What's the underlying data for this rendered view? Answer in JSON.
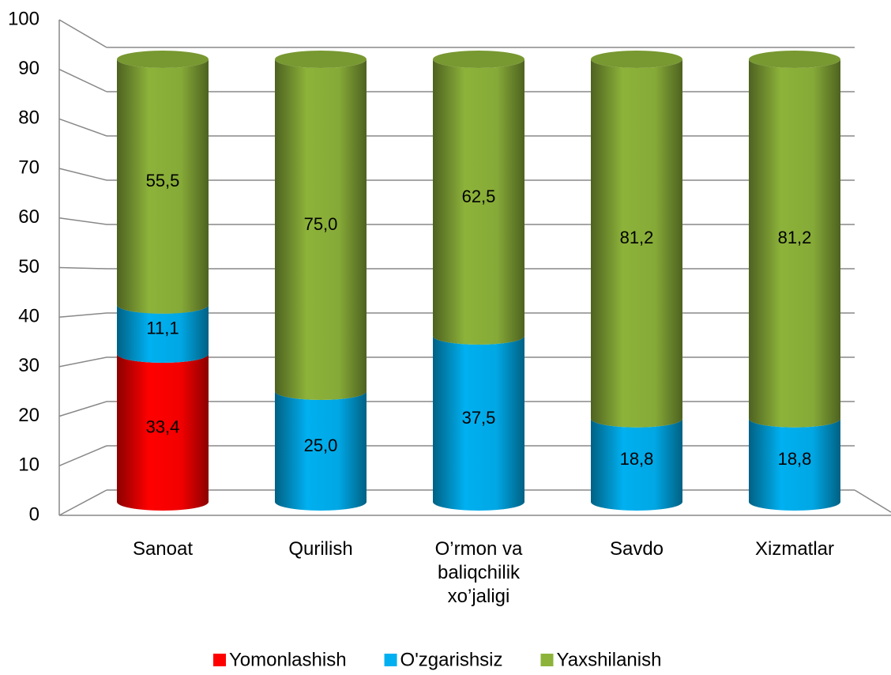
{
  "chart_data": {
    "type": "stacked-cylinder",
    "categories": [
      "Sanoat",
      "Qurilish",
      "O’rmon va baliqchilik xo’jaligi",
      "Savdo",
      "Xizmatlar"
    ],
    "series": [
      {
        "name": "Yomonlashish",
        "color": "#ff0000",
        "values": [
          33.4,
          null,
          null,
          null,
          null
        ],
        "value_labels": [
          "33,4",
          null,
          null,
          null,
          null
        ]
      },
      {
        "name": "O'zgarishsiz",
        "color": "#00b0f0",
        "values": [
          11.1,
          25.0,
          37.5,
          18.8,
          18.8
        ],
        "value_labels": [
          "11,1",
          "25,0",
          "37,5",
          "18,8",
          "18,8"
        ]
      },
      {
        "name": "Yaxshilanish",
        "color": "#8db33a",
        "values": [
          55.5,
          75.0,
          62.5,
          81.2,
          81.2
        ],
        "value_labels": [
          "55,5",
          "75,0",
          "62,5",
          "81,2",
          "81,2"
        ]
      }
    ],
    "ylim": [
      0,
      100
    ],
    "yticks": [
      0,
      10,
      20,
      30,
      40,
      50,
      60,
      70,
      80,
      90,
      100
    ],
    "grid": true,
    "legend": "bottom"
  }
}
